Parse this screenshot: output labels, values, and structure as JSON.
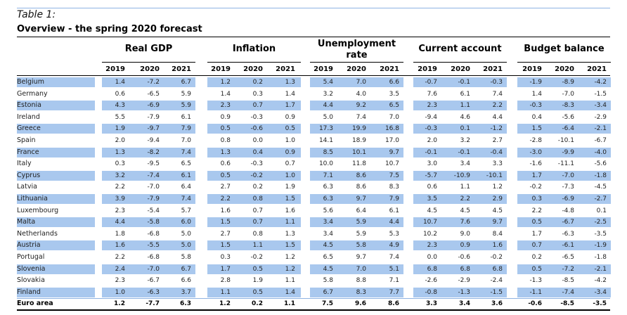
{
  "header": {
    "label": "Table 1:",
    "title": "Overview - the spring 2020 forecast"
  },
  "table": {
    "groups": [
      "Real GDP",
      "Inflation",
      "Unemployment rate",
      "Current account",
      "Budget balance"
    ],
    "years": [
      "2019",
      "2020",
      "2021"
    ],
    "rows": [
      {
        "country": "Belgium",
        "values": [
          "1.4",
          "-7.2",
          "6.7",
          "1.2",
          "0.2",
          "1.3",
          "5.4",
          "7.0",
          "6.6",
          "-0.7",
          "-0.1",
          "-0.3",
          "-1.9",
          "-8.9",
          "-4.2"
        ]
      },
      {
        "country": "Germany",
        "values": [
          "0.6",
          "-6.5",
          "5.9",
          "1.4",
          "0.3",
          "1.4",
          "3.2",
          "4.0",
          "3.5",
          "7.6",
          "6.1",
          "7.4",
          "1.4",
          "-7.0",
          "-1.5"
        ]
      },
      {
        "country": "Estonia",
        "values": [
          "4.3",
          "-6.9",
          "5.9",
          "2.3",
          "0.7",
          "1.7",
          "4.4",
          "9.2",
          "6.5",
          "2.3",
          "1.1",
          "2.2",
          "-0.3",
          "-8.3",
          "-3.4"
        ]
      },
      {
        "country": "Ireland",
        "values": [
          "5.5",
          "-7.9",
          "6.1",
          "0.9",
          "-0.3",
          "0.9",
          "5.0",
          "7.4",
          "7.0",
          "-9.4",
          "4.6",
          "4.4",
          "0.4",
          "-5.6",
          "-2.9"
        ]
      },
      {
        "country": "Greece",
        "values": [
          "1.9",
          "-9.7",
          "7.9",
          "0.5",
          "-0.6",
          "0.5",
          "17.3",
          "19.9",
          "16.8",
          "-0.3",
          "0.1",
          "-1.2",
          "1.5",
          "-6.4",
          "-2.1"
        ]
      },
      {
        "country": "Spain",
        "values": [
          "2.0",
          "-9.4",
          "7.0",
          "0.8",
          "0.0",
          "1.0",
          "14.1",
          "18.9",
          "17.0",
          "2.0",
          "3.2",
          "2.7",
          "-2.8",
          "-10.1",
          "-6.7"
        ]
      },
      {
        "country": "France",
        "values": [
          "1.3",
          "-8.2",
          "7.4",
          "1.3",
          "0.4",
          "0.9",
          "8.5",
          "10.1",
          "9.7",
          "-0.1",
          "-0.1",
          "-0.4",
          "-3.0",
          "-9.9",
          "-4.0"
        ]
      },
      {
        "country": "Italy",
        "values": [
          "0.3",
          "-9.5",
          "6.5",
          "0.6",
          "-0.3",
          "0.7",
          "10.0",
          "11.8",
          "10.7",
          "3.0",
          "3.4",
          "3.3",
          "-1.6",
          "-11.1",
          "-5.6"
        ]
      },
      {
        "country": "Cyprus",
        "values": [
          "3.2",
          "-7.4",
          "6.1",
          "0.5",
          "-0.2",
          "1.0",
          "7.1",
          "8.6",
          "7.5",
          "-5.7",
          "-10.9",
          "-10.1",
          "1.7",
          "-7.0",
          "-1.8"
        ]
      },
      {
        "country": "Latvia",
        "values": [
          "2.2",
          "-7.0",
          "6.4",
          "2.7",
          "0.2",
          "1.9",
          "6.3",
          "8.6",
          "8.3",
          "0.6",
          "1.1",
          "1.2",
          "-0.2",
          "-7.3",
          "-4.5"
        ]
      },
      {
        "country": "Lithuania",
        "values": [
          "3.9",
          "-7.9",
          "7.4",
          "2.2",
          "0.8",
          "1.5",
          "6.3",
          "9.7",
          "7.9",
          "3.5",
          "2.2",
          "2.9",
          "0.3",
          "-6.9",
          "-2.7"
        ]
      },
      {
        "country": "Luxembourg",
        "values": [
          "2.3",
          "-5.4",
          "5.7",
          "1.6",
          "0.7",
          "1.6",
          "5.6",
          "6.4",
          "6.1",
          "4.5",
          "4.5",
          "4.5",
          "2.2",
          "-4.8",
          "0.1"
        ]
      },
      {
        "country": "Malta",
        "values": [
          "4.4",
          "-5.8",
          "6.0",
          "1.5",
          "0.7",
          "1.1",
          "3.4",
          "5.9",
          "4.4",
          "10.7",
          "7.6",
          "9.7",
          "0.5",
          "-6.7",
          "-2.5"
        ]
      },
      {
        "country": "Netherlands",
        "values": [
          "1.8",
          "-6.8",
          "5.0",
          "2.7",
          "0.8",
          "1.3",
          "3.4",
          "5.9",
          "5.3",
          "10.2",
          "9.0",
          "8.4",
          "1.7",
          "-6.3",
          "-3.5"
        ]
      },
      {
        "country": "Austria",
        "values": [
          "1.6",
          "-5.5",
          "5.0",
          "1.5",
          "1.1",
          "1.5",
          "4.5",
          "5.8",
          "4.9",
          "2.3",
          "0.9",
          "1.6",
          "0.7",
          "-6.1",
          "-1.9"
        ]
      },
      {
        "country": "Portugal",
        "values": [
          "2.2",
          "-6.8",
          "5.8",
          "0.3",
          "-0.2",
          "1.2",
          "6.5",
          "9.7",
          "7.4",
          "0.0",
          "-0.6",
          "-0.2",
          "0.2",
          "-6.5",
          "-1.8"
        ]
      },
      {
        "country": "Slovenia",
        "values": [
          "2.4",
          "-7.0",
          "6.7",
          "1.7",
          "0.5",
          "1.2",
          "4.5",
          "7.0",
          "5.1",
          "6.8",
          "6.8",
          "6.8",
          "0.5",
          "-7.2",
          "-2.1"
        ]
      },
      {
        "country": "Slovakia",
        "values": [
          "2.3",
          "-6.7",
          "6.6",
          "2.8",
          "1.9",
          "1.1",
          "5.8",
          "8.8",
          "7.1",
          "-2.6",
          "-2.9",
          "-2.4",
          "-1.3",
          "-8.5",
          "-4.2"
        ]
      },
      {
        "country": "Finland",
        "values": [
          "1.0",
          "-6.3",
          "3.7",
          "1.1",
          "0.5",
          "1.4",
          "6.7",
          "8.3",
          "7.7",
          "-0.8",
          "-1.3",
          "-1.5",
          "-1.1",
          "-7.4",
          "-3.4"
        ]
      },
      {
        "country": "Euro area",
        "values": [
          "1.2",
          "-7.7",
          "6.3",
          "1.2",
          "0.2",
          "1.1",
          "7.5",
          "9.6",
          "8.6",
          "3.3",
          "3.4",
          "3.6",
          "-0.6",
          "-8.5",
          "-3.5"
        ]
      }
    ]
  }
}
